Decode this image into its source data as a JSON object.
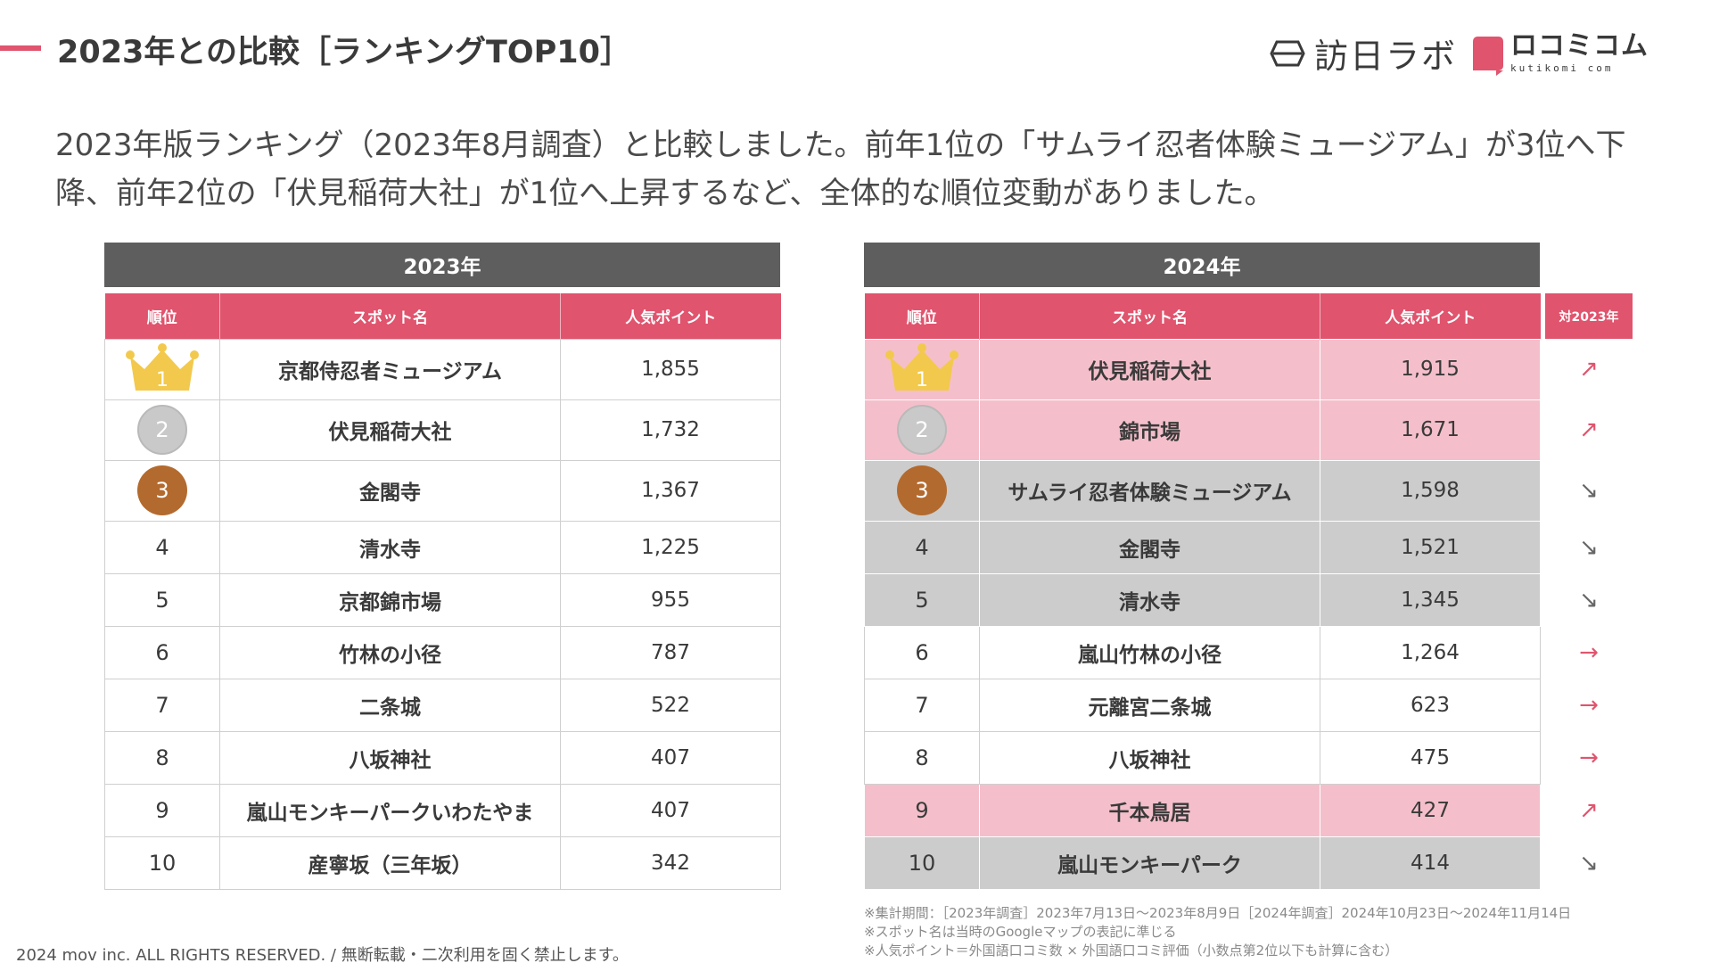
{
  "header": {
    "title": "2023年との比較［ランキングTOP10］",
    "logo_hoj": "訪日ラボ",
    "logo_kuti_main": "ロコミコム",
    "logo_kuti_sub": "kutikomi com"
  },
  "lead": "2023年版ランキング（2023年8月調査）と比較しました。前年1位の「サムライ忍者体験ミュージアム」が3位へ下降、前年2位の「伏見稲荷大社」が1位へ上昇するなど、全体的な順位変動がありました。",
  "columns": {
    "rank": "順位",
    "spot": "スポット名",
    "points": "人気ポイント",
    "vs": "対2023年"
  },
  "t2023": {
    "year": "2023年",
    "rows": [
      {
        "rank": "1",
        "spot": "京都侍忍者ミュージアム",
        "points": "1,855"
      },
      {
        "rank": "2",
        "spot": "伏見稲荷大社",
        "points": "1,732"
      },
      {
        "rank": "3",
        "spot": "金閣寺",
        "points": "1,367"
      },
      {
        "rank": "4",
        "spot": "清水寺",
        "points": "1,225"
      },
      {
        "rank": "5",
        "spot": "京都錦市場",
        "points": "955"
      },
      {
        "rank": "6",
        "spot": "竹林の小径",
        "points": "787"
      },
      {
        "rank": "7",
        "spot": "二条城",
        "points": "522"
      },
      {
        "rank": "8",
        "spot": "八坂神社",
        "points": "407"
      },
      {
        "rank": "9",
        "spot": "嵐山モンキーパークいわたやま",
        "points": "407"
      },
      {
        "rank": "10",
        "spot": "産寧坂（三年坂）",
        "points": "342"
      }
    ]
  },
  "t2024": {
    "year": "2024年",
    "rows": [
      {
        "rank": "1",
        "spot": "伏見稲荷大社",
        "points": "1,915",
        "trend": "↗"
      },
      {
        "rank": "2",
        "spot": "錦市場",
        "points": "1,671",
        "trend": "↗"
      },
      {
        "rank": "3",
        "spot": "サムライ忍者体験ミュージアム",
        "points": "1,598",
        "trend": "↘"
      },
      {
        "rank": "4",
        "spot": "金閣寺",
        "points": "1,521",
        "trend": "↘"
      },
      {
        "rank": "5",
        "spot": "清水寺",
        "points": "1,345",
        "trend": "↘"
      },
      {
        "rank": "6",
        "spot": "嵐山竹林の小径",
        "points": "1,264",
        "trend": "→"
      },
      {
        "rank": "7",
        "spot": "元離宮二条城",
        "points": "623",
        "trend": "→"
      },
      {
        "rank": "8",
        "spot": "八坂神社",
        "points": "475",
        "trend": "→"
      },
      {
        "rank": "9",
        "spot": "千本鳥居",
        "points": "427",
        "trend": "↗"
      },
      {
        "rank": "10",
        "spot": "嵐山モンキーパーク",
        "points": "414",
        "trend": "↘"
      }
    ]
  },
  "notes": [
    "※集計期間：［2023年調査］2023年7月13日〜2023年8月9日［2024年調査］2024年10月23日〜2024年11月14日",
    "※スポット名は当時のGoogleマップの表記に準じる",
    "※人気ポイント＝外国語口コミ数 × 外国語口コミ評価（小数点第2位以下も計算に含む）"
  ],
  "copyright": "2024 mov inc. ALL RIGHTS RESERVED. / 無断転載・二次利用を固く禁止します。",
  "colors": {
    "accent": "#e0546e",
    "header_gray": "#5e5e5e",
    "row_pink": "#f4bfcb",
    "row_gray": "#cccccc",
    "gold": "#f2c94c",
    "silver": "#c9c9c9",
    "bronze": "#b36a2e"
  },
  "icons": {
    "crown": "crown-icon",
    "up": "arrow-up-right-icon",
    "down": "arrow-down-right-icon",
    "flat": "arrow-right-icon"
  }
}
